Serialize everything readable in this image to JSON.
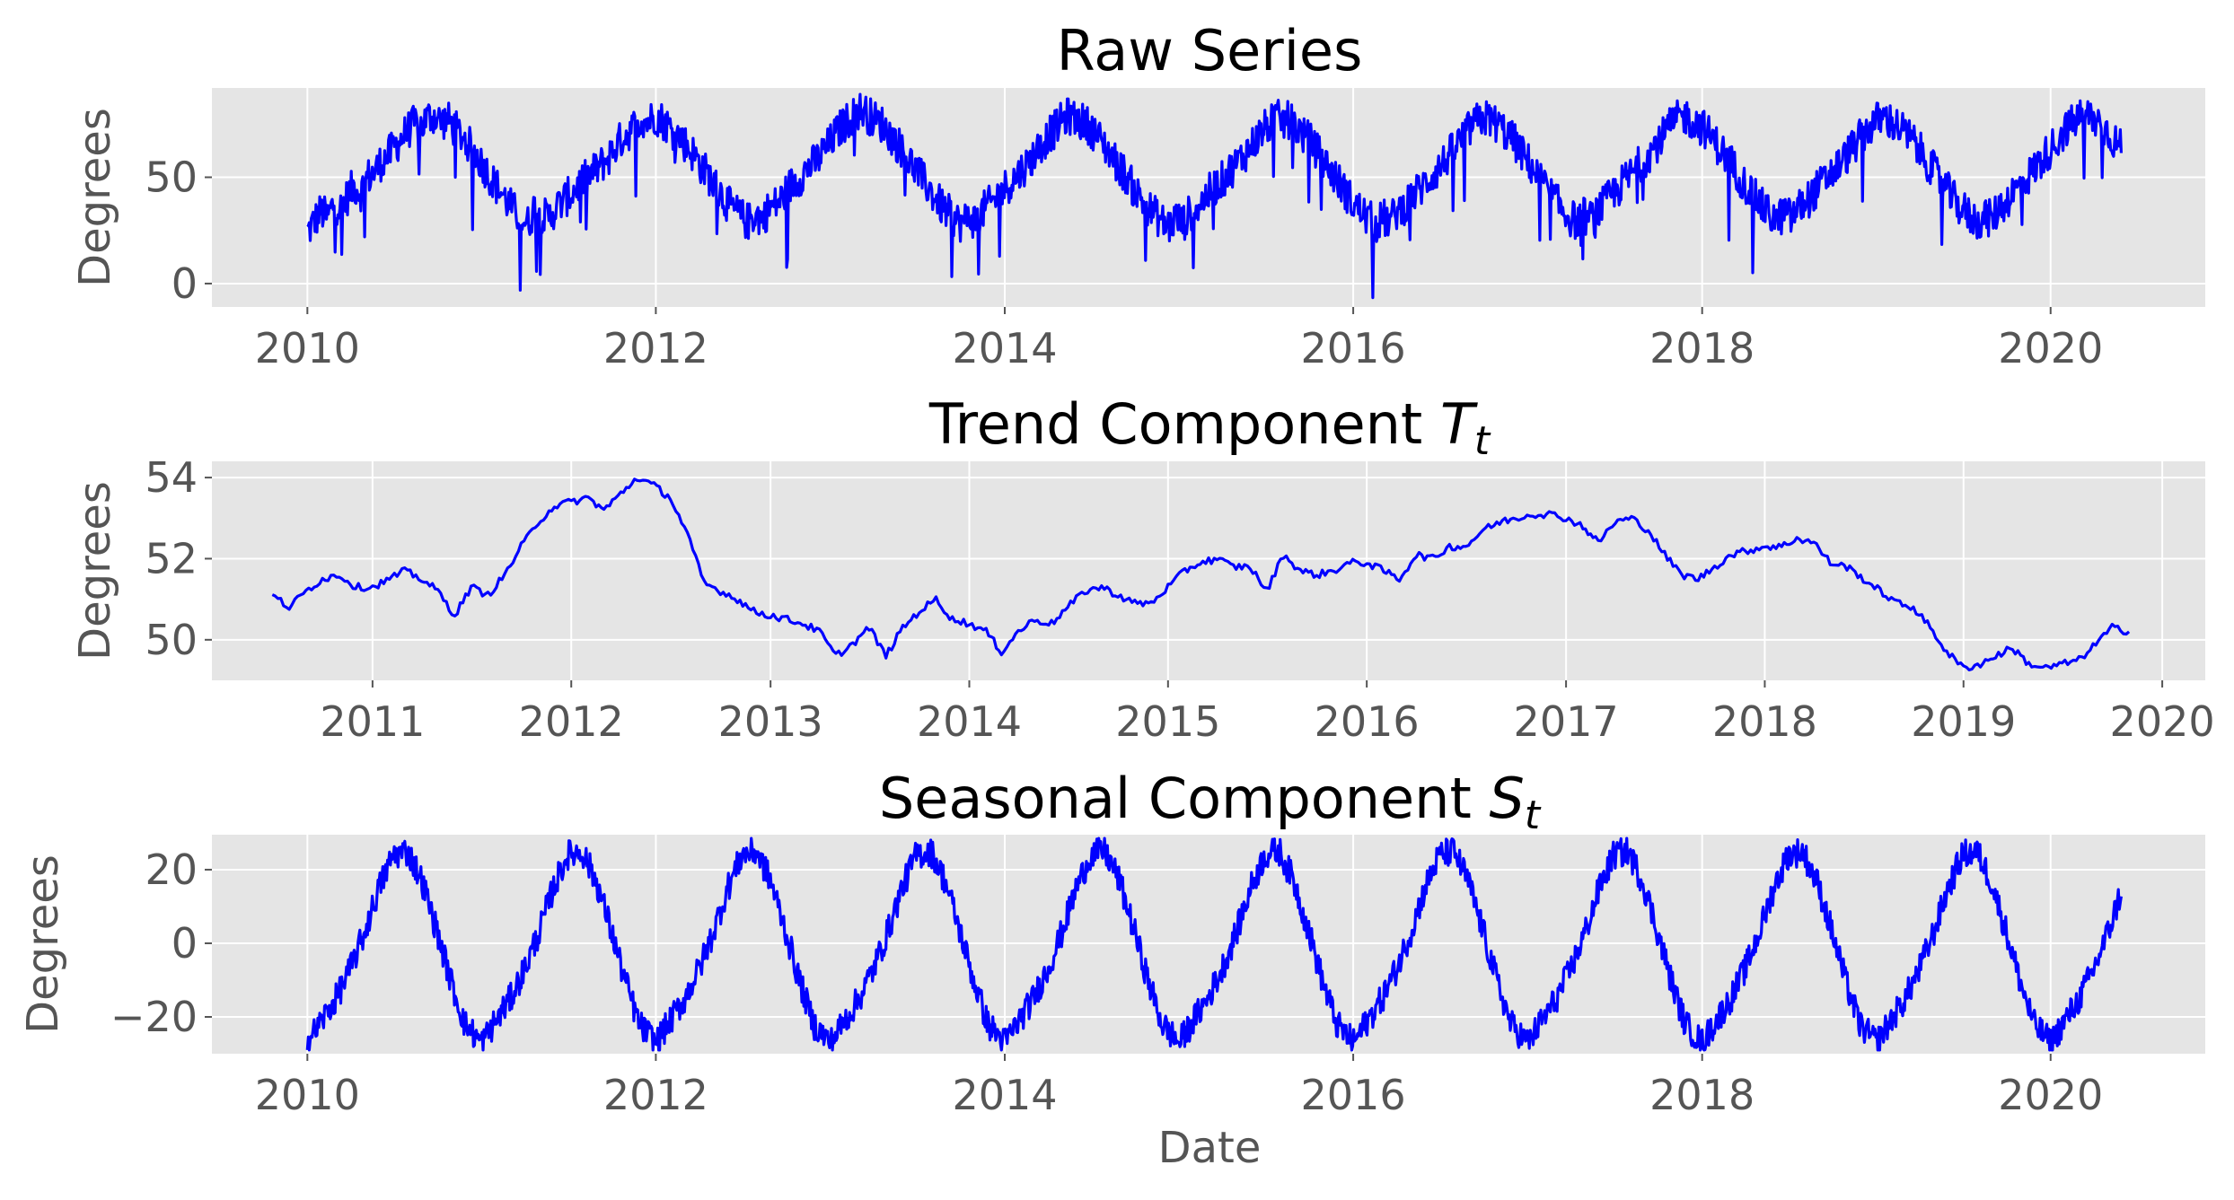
{
  "chart_data": [
    {
      "type": "line",
      "title": "Raw Series",
      "xlabel": "",
      "ylabel": "Degrees",
      "xlim": [
        "2009-06-15",
        "2020-11-20"
      ],
      "ylim": [
        -11,
        92
      ],
      "xticks": [
        "2010",
        "2012",
        "2014",
        "2016",
        "2018",
        "2020"
      ],
      "yticks": [
        0,
        50
      ],
      "grid": true,
      "color": "#0000ff",
      "series": [
        {
          "x_range": [
            "2010-01-01",
            "2020-05-28"
          ],
          "sample_step_days": 14,
          "values": [
            24,
            29,
            34,
            31,
            38,
            35,
            41,
            46,
            43,
            50,
            52,
            57,
            60,
            64,
            68,
            72,
            75,
            74,
            78,
            79,
            76,
            77,
            73,
            70,
            66,
            62,
            57,
            52,
            47,
            43,
            38,
            34,
            31,
            28,
            36,
            33,
            30,
            35,
            38,
            41,
            44,
            48,
            50,
            53,
            56,
            59,
            64,
            68,
            71,
            74,
            78,
            76,
            79,
            77,
            74,
            71,
            68,
            64,
            60,
            55,
            51,
            46,
            42,
            37,
            34,
            31,
            29,
            33,
            30,
            35,
            37,
            40,
            45,
            48,
            51,
            55,
            57,
            61,
            65,
            70,
            74,
            77,
            80,
            82,
            79,
            77,
            75,
            71,
            67,
            63,
            58,
            54,
            49,
            45,
            40,
            36,
            33,
            30,
            28,
            32,
            29,
            34,
            37,
            40,
            44,
            47,
            50,
            54,
            57,
            62,
            66,
            70,
            73,
            77,
            79,
            77,
            76,
            74,
            70,
            66,
            62,
            57,
            53,
            48,
            43,
            39,
            35,
            32,
            29,
            27,
            31,
            28,
            33,
            36,
            39,
            43,
            46,
            49,
            53,
            56,
            60,
            64,
            68,
            72,
            75,
            78,
            76,
            77,
            74,
            70,
            67,
            63,
            58,
            54,
            49,
            45,
            40,
            36,
            33,
            30,
            28,
            31,
            29,
            34,
            36,
            40,
            43,
            46,
            50,
            53,
            57,
            61,
            65,
            69,
            73,
            76,
            78,
            77,
            75,
            72,
            69,
            65,
            60,
            56,
            51,
            47,
            42,
            38,
            34,
            31,
            29,
            32,
            30,
            34,
            37,
            41,
            44,
            48,
            51,
            55,
            58,
            62,
            66,
            70,
            74,
            77,
            79,
            77,
            75,
            73,
            69,
            65,
            61,
            57,
            52,
            47,
            43,
            39,
            35,
            32,
            30,
            33,
            31,
            35,
            38,
            41,
            45,
            48,
            52,
            55,
            59,
            63,
            67,
            71,
            74,
            77,
            78,
            76,
            74,
            71,
            68,
            64,
            59,
            55,
            50,
            46,
            41,
            37,
            34,
            31,
            29,
            32,
            30,
            35,
            38,
            42,
            45,
            49,
            52,
            56,
            60,
            64,
            68,
            72,
            75,
            78,
            79,
            78,
            76,
            73,
            69,
            65,
            61,
            56,
            52,
            47,
            43,
            38,
            35,
            32,
            30,
            33,
            31,
            36,
            39,
            42,
            46,
            49,
            53,
            57,
            60,
            64,
            68,
            72,
            76,
            78,
            79,
            77,
            75,
            72,
            68,
            64,
            59,
            55,
            50,
            46,
            41,
            37,
            34,
            31,
            30,
            32,
            30,
            34,
            37,
            41,
            44,
            48,
            52,
            56,
            60,
            64,
            68,
            72,
            75,
            78,
            79,
            77,
            74,
            70,
            66,
            62,
            57,
            52,
            48,
            43,
            39,
            35,
            32,
            30,
            32,
            31,
            35,
            39,
            42,
            46,
            50,
            53,
            57,
            60
          ]
        }
      ]
    },
    {
      "type": "line",
      "title": "Trend Component ",
      "title_symbol": "T",
      "title_subscript": "t",
      "xlabel": "",
      "ylabel": "Degrees",
      "xlim": [
        "2010-03-12",
        "2020-03-20"
      ],
      "ylim": [
        49.0,
        54.4
      ],
      "xticks": [
        "2011",
        "2012",
        "2013",
        "2014",
        "2015",
        "2016",
        "2017",
        "2018",
        "2019",
        "2020"
      ],
      "yticks": [
        50,
        52,
        54
      ],
      "grid": true,
      "color": "#0000ff",
      "series": [
        {
          "x": [
            "2010-07-01",
            "2010-08-01",
            "2010-09-01",
            "2010-10-01",
            "2010-11-01",
            "2010-12-01",
            "2011-01-01",
            "2011-02-01",
            "2011-03-01",
            "2011-04-01",
            "2011-05-01",
            "2011-06-01",
            "2011-07-01",
            "2011-08-01",
            "2011-09-01",
            "2011-10-01",
            "2011-11-01",
            "2011-12-01",
            "2012-01-01",
            "2012-02-01",
            "2012-03-01",
            "2012-04-01",
            "2012-05-01",
            "2012-06-01",
            "2012-07-01",
            "2012-08-01",
            "2012-09-01",
            "2012-10-01",
            "2012-11-01",
            "2012-12-01",
            "2013-01-01",
            "2013-02-01",
            "2013-03-01",
            "2013-04-01",
            "2013-05-01",
            "2013-06-01",
            "2013-07-01",
            "2013-08-01",
            "2013-09-01",
            "2013-10-01",
            "2013-11-01",
            "2013-12-01",
            "2014-01-01",
            "2014-02-01",
            "2014-03-01",
            "2014-04-01",
            "2014-05-01",
            "2014-06-01",
            "2014-07-01",
            "2014-08-01",
            "2014-09-01",
            "2014-10-01",
            "2014-11-01",
            "2014-12-01",
            "2015-01-01",
            "2015-02-01",
            "2015-03-01",
            "2015-04-01",
            "2015-05-01",
            "2015-06-01",
            "2015-07-01",
            "2015-08-01",
            "2015-09-01",
            "2015-10-01",
            "2015-11-01",
            "2015-12-01",
            "2016-01-01",
            "2016-02-01",
            "2016-03-01",
            "2016-04-01",
            "2016-05-01",
            "2016-06-01",
            "2016-07-01",
            "2016-08-01",
            "2016-09-01",
            "2016-10-01",
            "2016-11-01",
            "2016-12-01",
            "2017-01-01",
            "2017-02-01",
            "2017-03-01",
            "2017-04-01",
            "2017-05-01",
            "2017-06-01",
            "2017-07-01",
            "2017-08-01",
            "2017-09-01",
            "2017-10-01",
            "2017-11-01",
            "2017-12-01",
            "2018-01-01",
            "2018-02-01",
            "2018-03-01",
            "2018-04-01",
            "2018-05-01",
            "2018-06-01",
            "2018-07-01",
            "2018-08-01",
            "2018-09-01",
            "2018-10-01",
            "2018-11-01",
            "2018-12-01",
            "2019-01-01",
            "2019-02-01",
            "2019-03-01",
            "2019-04-01",
            "2019-05-01",
            "2019-06-01",
            "2019-07-01",
            "2019-08-01",
            "2019-09-01",
            "2019-10-01",
            "2019-11-01"
          ],
          "values": [
            51.1,
            50.8,
            51.2,
            51.5,
            51.6,
            51.3,
            51.3,
            51.5,
            51.7,
            51.5,
            51.2,
            50.6,
            51.3,
            51.1,
            51.6,
            52.3,
            52.9,
            53.3,
            53.4,
            53.5,
            53.2,
            53.6,
            54.0,
            53.8,
            53.5,
            52.6,
            51.4,
            51.2,
            51.0,
            50.7,
            50.6,
            50.5,
            50.4,
            50.2,
            49.6,
            49.9,
            50.3,
            49.6,
            50.3,
            50.7,
            51.0,
            50.5,
            50.4,
            50.2,
            49.7,
            50.2,
            50.5,
            50.4,
            50.8,
            51.2,
            51.3,
            51.1,
            50.9,
            50.9,
            51.3,
            51.7,
            51.9,
            52.0,
            51.8,
            51.8,
            51.2,
            52.1,
            51.7,
            51.6,
            51.7,
            51.9,
            51.9,
            51.7,
            51.5,
            52.1,
            52.0,
            52.3,
            52.3,
            52.7,
            52.9,
            53.0,
            53.1,
            53.1,
            53.0,
            52.8,
            52.4,
            52.9,
            53.0,
            52.7,
            52.1,
            51.6,
            51.5,
            51.8,
            52.1,
            52.2,
            52.3,
            52.3,
            52.5,
            52.4,
            51.9,
            51.8,
            51.5,
            51.2,
            50.9,
            50.8,
            50.3,
            49.7,
            49.3,
            49.4,
            49.6,
            49.8,
            49.4,
            49.3,
            49.4,
            49.5,
            49.9,
            50.3,
            50.2
          ]
        }
      ]
    },
    {
      "type": "line",
      "title": "Seasonal Component ",
      "title_symbol": "S",
      "title_subscript": "t",
      "xlabel": "Date",
      "ylabel": "Degrees",
      "xlim": [
        "2009-06-15",
        "2020-11-20"
      ],
      "ylim": [
        -30,
        29.5
      ],
      "xticks": [
        "2010",
        "2012",
        "2014",
        "2016",
        "2018",
        "2020"
      ],
      "yticks": [
        -20,
        0,
        20
      ],
      "grid": true,
      "color": "#0000ff",
      "seasonal_period_days": 365.25,
      "series": [
        {
          "x_range": [
            "2010-01-01",
            "2020-05-28"
          ],
          "annual_profile_x_days": [
            0,
            30,
            60,
            90,
            120,
            150,
            180,
            210,
            240,
            270,
            300,
            330,
            365
          ],
          "annual_profile_values": [
            -27,
            -21,
            -15,
            -7,
            3,
            15,
            24,
            25,
            17,
            4,
            -10,
            -22,
            -27
          ]
        }
      ]
    }
  ]
}
